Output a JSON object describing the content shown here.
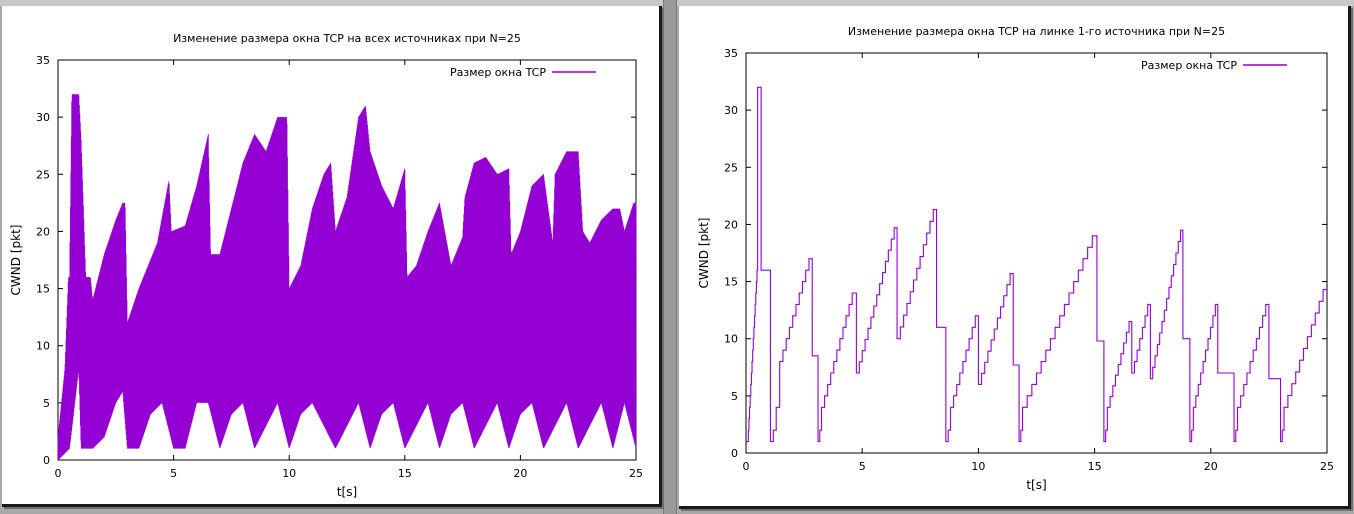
{
  "chart_data": [
    {
      "type": "line",
      "title": "Изменение размера окна TCP на всех источниках при N=25",
      "xlabel": "t[s]",
      "ylabel": "CWND [pkt]",
      "xlim": [
        0,
        25
      ],
      "ylim": [
        0,
        35
      ],
      "xticks": [
        0,
        5,
        10,
        15,
        20,
        25
      ],
      "yticks": [
        0,
        5,
        10,
        15,
        20,
        25,
        30,
        35
      ],
      "grid": false,
      "legend_position": "top-right",
      "color": "#9400d3",
      "series": [
        {
          "name": "Размер окна TCP",
          "envelope_upper": {
            "x": [
              0,
              0.3,
              0.45,
              0.5,
              0.6,
              0.9,
              1.0,
              1.2,
              1.4,
              1.5,
              2.0,
              2.5,
              2.8,
              2.9,
              3.0,
              3.5,
              4.3,
              4.8,
              4.9,
              5.5,
              6.0,
              6.5,
              6.6,
              7.0,
              7.5,
              8.0,
              8.5,
              9.0,
              9.5,
              9.9,
              10.0,
              10.5,
              11.0,
              11.5,
              11.8,
              12.0,
              12.5,
              13.0,
              13.3,
              13.5,
              14.0,
              14.5,
              15.0,
              15.1,
              15.5,
              16.0,
              16.5,
              17.0,
              17.5,
              17.6,
              18.0,
              18.5,
              19.0,
              19.5,
              19.6,
              20.0,
              20.5,
              21.0,
              21.4,
              21.5,
              22.0,
              22.5,
              22.7,
              23.0,
              23.5,
              24.0,
              24.3,
              24.5,
              24.9,
              25.0
            ],
            "y": [
              2,
              8,
              16,
              16,
              32,
              32,
              28,
              16,
              16,
              14,
              18,
              21,
              22.5,
              22.5,
              12,
              15,
              19,
              24.5,
              20,
              20.5,
              24,
              28.5,
              18,
              18,
              22,
              26,
              28.5,
              27,
              30,
              30,
              15,
              17,
              22,
              25,
              26,
              20,
              23,
              30,
              31,
              27,
              24,
              22,
              25.5,
              16,
              17,
              20,
              22.5,
              17,
              19.5,
              23,
              26,
              26.5,
              25,
              25.5,
              18,
              20,
              24,
              25,
              19,
              25,
              27,
              27,
              20,
              19,
              21,
              22,
              22,
              20,
              22.5,
              22.5
            ]
          },
          "envelope_lower": {
            "x": [
              0,
              0.5,
              0.9,
              1.0,
              1.5,
              2.0,
              2.5,
              2.8,
              3.0,
              3.5,
              4.0,
              4.5,
              5.0,
              5.5,
              6.0,
              6.5,
              7.0,
              7.5,
              8.0,
              8.5,
              9.0,
              9.5,
              10.0,
              10.5,
              11.0,
              11.5,
              12.0,
              12.5,
              13.0,
              13.5,
              14.0,
              14.5,
              15.0,
              15.5,
              16.0,
              16.5,
              17.0,
              17.5,
              18.0,
              18.5,
              19.0,
              19.5,
              20.0,
              20.5,
              21.0,
              21.5,
              22.0,
              22.5,
              23.0,
              23.5,
              24.0,
              24.5,
              25.0
            ],
            "y": [
              0,
              1,
              8,
              1,
              1,
              2,
              5,
              6,
              1,
              1,
              4,
              5,
              1,
              1,
              5,
              5,
              1,
              4,
              5,
              1,
              3,
              5,
              1,
              4,
              5,
              3,
              1,
              3,
              5,
              1,
              4,
              5,
              1,
              3,
              5,
              1,
              4,
              5,
              1,
              3,
              5,
              1,
              4,
              5,
              1,
              3,
              5,
              1,
              3,
              5,
              1,
              5,
              1
            ]
          }
        }
      ]
    },
    {
      "type": "line",
      "title": "Изменение размера окна TCP на линке 1-го источника при N=25",
      "xlabel": "t[s]",
      "ylabel": "CWND [pkt]",
      "xlim": [
        0,
        25
      ],
      "ylim": [
        0,
        35
      ],
      "xticks": [
        0,
        5,
        10,
        15,
        20,
        25
      ],
      "yticks": [
        0,
        5,
        10,
        15,
        20,
        25,
        30,
        35
      ],
      "grid": false,
      "legend_position": "top-right",
      "color": "#9400d3",
      "series": [
        {
          "name": "Размер окна TCP",
          "cycles": [
            {
              "t_start": 0.0,
              "t_end": 0.1,
              "w_start": 1,
              "w_end": 1
            },
            {
              "t_start": 0.1,
              "t_end": 0.5,
              "w_start": 2,
              "w_end": 16
            },
            {
              "t_start": 0.5,
              "t_end": 0.65,
              "w_start": 32,
              "w_end": 32
            },
            {
              "t_start": 0.65,
              "t_end": 1.05,
              "w_start": 16,
              "w_end": 16
            },
            {
              "t_start": 1.05,
              "t_end": 1.3,
              "w_start": 1,
              "w_end": 2
            },
            {
              "t_start": 1.3,
              "t_end": 1.45,
              "w_start": 4,
              "w_end": 4
            },
            {
              "t_start": 1.45,
              "t_end": 2.85,
              "w_start": 8,
              "w_end": 17
            },
            {
              "t_start": 2.85,
              "t_end": 3.1,
              "w_start": 8.5,
              "w_end": 8.5
            },
            {
              "t_start": 3.1,
              "t_end": 3.25,
              "w_start": 1,
              "w_end": 2
            },
            {
              "t_start": 3.25,
              "t_end": 4.7,
              "w_start": 4,
              "w_end": 14
            },
            {
              "t_start": 4.7,
              "t_end": 4.75,
              "w_start": 14,
              "w_end": 14
            },
            {
              "t_start": 4.75,
              "t_end": 6.5,
              "w_start": 7,
              "w_end": 19.7
            },
            {
              "t_start": 6.5,
              "t_end": 8.2,
              "w_start": 10,
              "w_end": 21.3
            },
            {
              "t_start": 8.2,
              "t_end": 8.6,
              "w_start": 11,
              "w_end": 11
            },
            {
              "t_start": 8.6,
              "t_end": 8.8,
              "w_start": 1,
              "w_end": 2
            },
            {
              "t_start": 8.8,
              "t_end": 10.0,
              "w_start": 4,
              "w_end": 12
            },
            {
              "t_start": 10.0,
              "t_end": 11.5,
              "w_start": 6,
              "w_end": 15.7
            },
            {
              "t_start": 11.5,
              "t_end": 11.75,
              "w_start": 7.7,
              "w_end": 7.7
            },
            {
              "t_start": 11.75,
              "t_end": 11.9,
              "w_start": 1,
              "w_end": 2
            },
            {
              "t_start": 11.9,
              "t_end": 15.1,
              "w_start": 4,
              "w_end": 19
            },
            {
              "t_start": 15.1,
              "t_end": 15.4,
              "w_start": 9.8,
              "w_end": 9.8
            },
            {
              "t_start": 15.4,
              "t_end": 15.55,
              "w_start": 1,
              "w_end": 2
            },
            {
              "t_start": 15.55,
              "t_end": 16.6,
              "w_start": 4,
              "w_end": 11.5
            },
            {
              "t_start": 16.6,
              "t_end": 17.4,
              "w_start": 7,
              "w_end": 13
            },
            {
              "t_start": 17.4,
              "t_end": 18.8,
              "w_start": 6.5,
              "w_end": 19.5
            },
            {
              "t_start": 18.8,
              "t_end": 19.1,
              "w_start": 10,
              "w_end": 10
            },
            {
              "t_start": 19.1,
              "t_end": 19.25,
              "w_start": 1,
              "w_end": 2
            },
            {
              "t_start": 19.25,
              "t_end": 20.3,
              "w_start": 4,
              "w_end": 13
            },
            {
              "t_start": 20.3,
              "t_end": 21.0,
              "w_start": 7,
              "w_end": 7
            },
            {
              "t_start": 21.0,
              "t_end": 21.15,
              "w_start": 1,
              "w_end": 2
            },
            {
              "t_start": 21.15,
              "t_end": 22.5,
              "w_start": 4,
              "w_end": 13
            },
            {
              "t_start": 22.5,
              "t_end": 23.0,
              "w_start": 6.5,
              "w_end": 6.5
            },
            {
              "t_start": 23.0,
              "t_end": 23.15,
              "w_start": 1,
              "w_end": 2
            },
            {
              "t_start": 23.15,
              "t_end": 25.0,
              "w_start": 4,
              "w_end": 14.3
            }
          ]
        }
      ]
    }
  ]
}
